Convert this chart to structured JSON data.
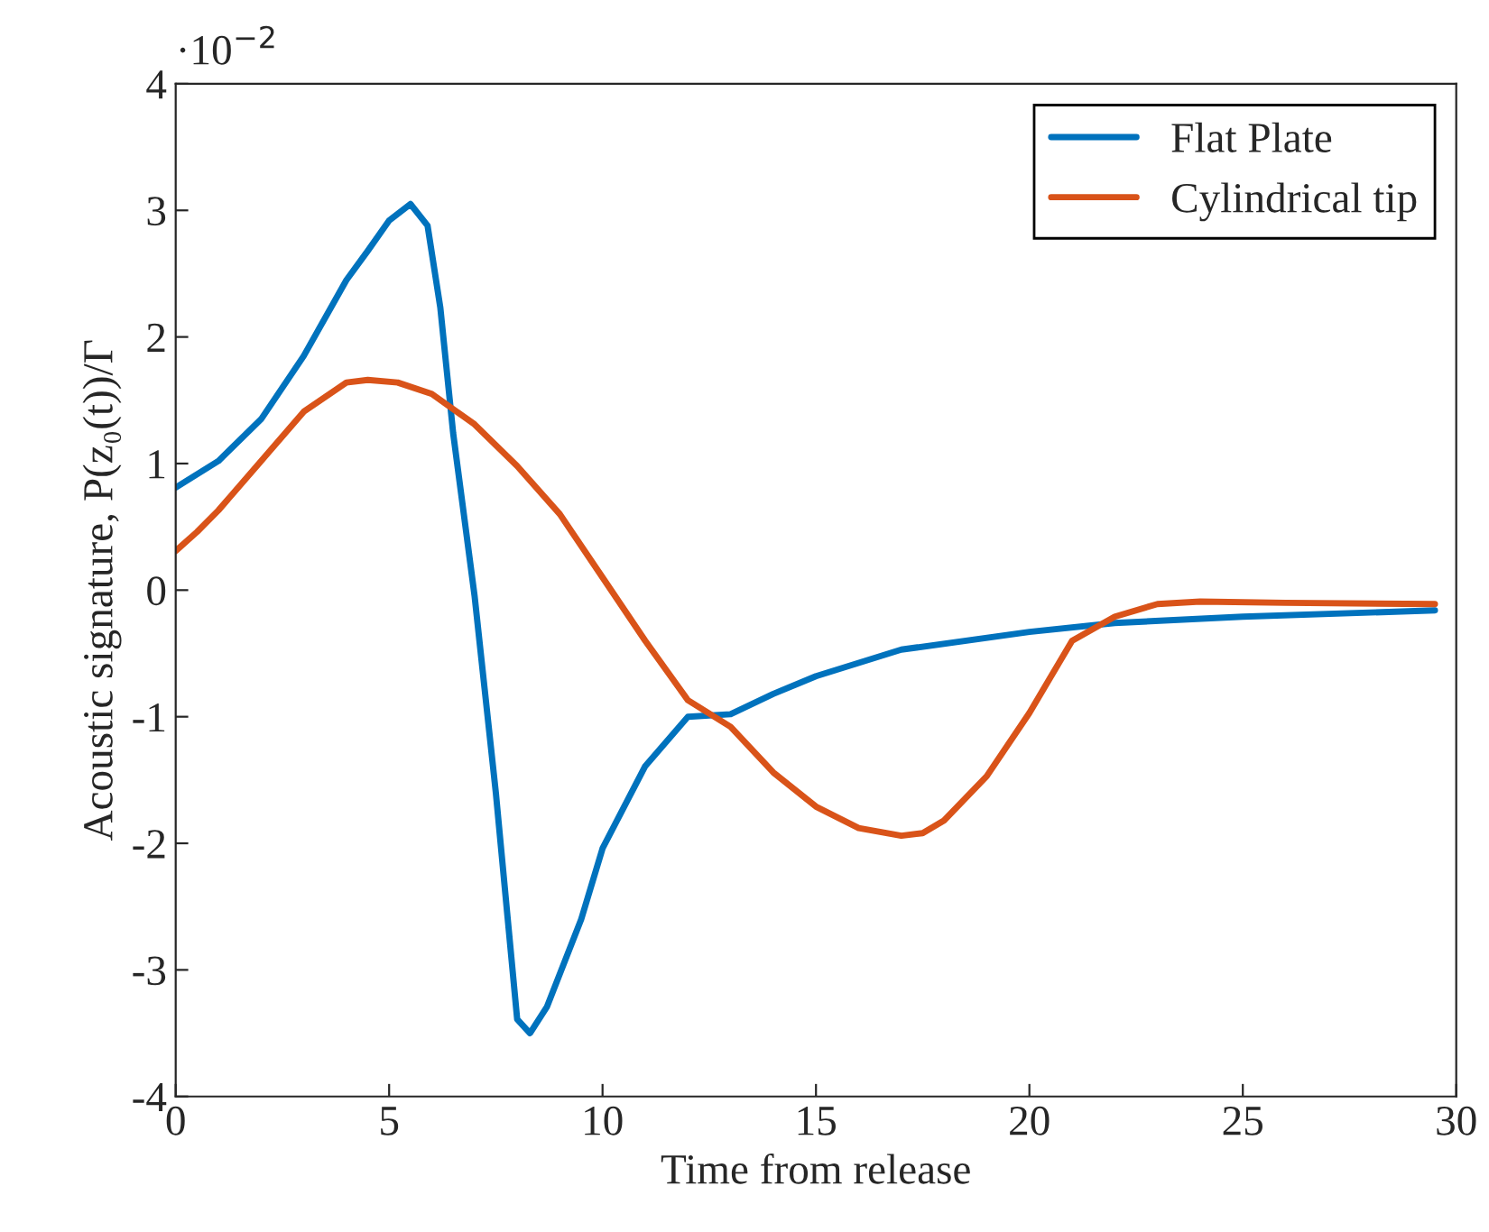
{
  "chart_data": {
    "type": "line",
    "xlabel": "Time from release",
    "ylabel": "Acoustic signature, P(z₀(t))/Γ",
    "annotations": [
      "·10$^{−2}$"
    ],
    "xlim": [
      0,
      30
    ],
    "xticks": [
      0,
      5,
      10,
      15,
      20,
      25,
      30
    ],
    "ylim": [
      -4,
      4
    ],
    "yticks": [
      -4,
      -3,
      -2,
      -1,
      0,
      1,
      2,
      3,
      4
    ],
    "grid": false,
    "legend": "top right",
    "marker": "none",
    "line_style": "solid",
    "series": [
      {
        "name": "Flat Plate",
        "color": "#0072bd",
        "x": [
          0,
          1,
          2,
          3,
          4,
          4.5,
          5,
          5.5,
          5.9,
          6.2,
          6.5,
          7,
          7.5,
          8,
          8.3,
          8.7,
          9.5,
          10,
          11,
          12,
          13,
          14,
          15,
          17,
          20,
          22,
          25,
          29.5
        ],
        "values": [
          0.81,
          1.02,
          1.35,
          1.85,
          2.45,
          2.68,
          2.92,
          3.05,
          2.88,
          2.23,
          1.24,
          -0.04,
          -1.6,
          -3.39,
          -3.5,
          -3.29,
          -2.6,
          -2.04,
          -1.39,
          -1.0,
          -0.98,
          -0.82,
          -0.68,
          -0.47,
          -0.33,
          -0.26,
          -0.21,
          -0.16
        ]
      },
      {
        "name": "Cylindrical tip",
        "color": "#d95319",
        "x": [
          0,
          0.5,
          1,
          2,
          3,
          4,
          4.5,
          5.2,
          6,
          7,
          8,
          9,
          10,
          11,
          12,
          13,
          14,
          15,
          16,
          17,
          17.5,
          18,
          19,
          20,
          21,
          22,
          23,
          24,
          26,
          29.5
        ],
        "values": [
          0.31,
          0.46,
          0.63,
          1.02,
          1.41,
          1.64,
          1.66,
          1.64,
          1.55,
          1.31,
          0.98,
          0.6,
          0.1,
          -0.4,
          -0.87,
          -1.08,
          -1.44,
          -1.71,
          -1.88,
          -1.94,
          -1.92,
          -1.82,
          -1.47,
          -0.97,
          -0.4,
          -0.21,
          -0.11,
          -0.09,
          -0.1,
          -0.11
        ]
      }
    ]
  }
}
